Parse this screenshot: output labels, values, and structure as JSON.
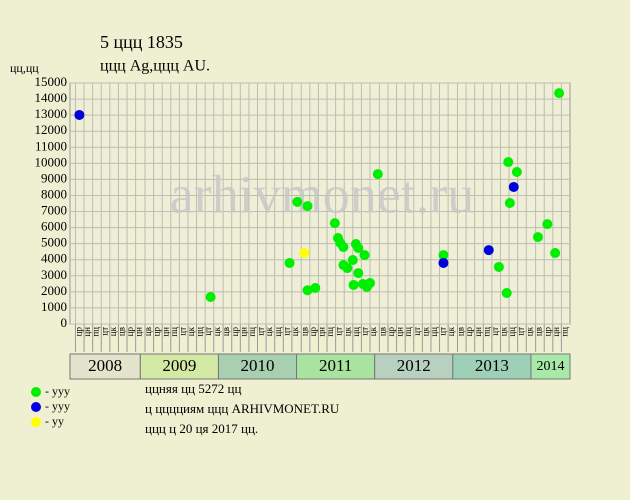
{
  "chart_data": {
    "type": "scatter",
    "title": "5 ццц 1835",
    "subtitle": "ццц Ag,ццц AU.",
    "ylabel": "цц,цц",
    "watermark": "arhivmonet.ru",
    "xlim": [
      2008.1,
      2014.5
    ],
    "ylim": [
      0,
      15000
    ],
    "yticks": [
      0,
      1000,
      2000,
      3000,
      4000,
      5000,
      6000,
      7000,
      8000,
      9000,
      10000,
      11000,
      12000,
      13000,
      14000,
      15000
    ],
    "grid": true,
    "xticks": [
      {
        "value": 2008.17,
        "label": "цр"
      },
      {
        "value": 2008.28,
        "label": "цн"
      },
      {
        "value": 2008.39,
        "label": "пц"
      },
      {
        "value": 2008.5,
        "label": "цт"
      },
      {
        "value": 2008.61,
        "label": "цк"
      },
      {
        "value": 2008.72,
        "label": "цв"
      },
      {
        "value": 2008.83,
        "label": "цр"
      },
      {
        "value": 2008.94,
        "label": "цн"
      },
      {
        "value": 2009.06,
        "label": "цв"
      },
      {
        "value": 2009.17,
        "label": "цр"
      },
      {
        "value": 2009.28,
        "label": "цн"
      },
      {
        "value": 2009.39,
        "label": "пц"
      },
      {
        "value": 2009.5,
        "label": "цт"
      },
      {
        "value": 2009.61,
        "label": "цк"
      },
      {
        "value": 2009.72,
        "label": "цц"
      },
      {
        "value": 2009.83,
        "label": "цт"
      },
      {
        "value": 2009.94,
        "label": "цк"
      },
      {
        "value": 2010.06,
        "label": "цв"
      },
      {
        "value": 2010.17,
        "label": "цр"
      },
      {
        "value": 2010.28,
        "label": "цн"
      },
      {
        "value": 2010.39,
        "label": "пц"
      },
      {
        "value": 2010.5,
        "label": "цт"
      },
      {
        "value": 2010.61,
        "label": "цк"
      },
      {
        "value": 2010.72,
        "label": "цц"
      },
      {
        "value": 2010.83,
        "label": "цт"
      },
      {
        "value": 2010.94,
        "label": "цк"
      },
      {
        "value": 2011.06,
        "label": "цв"
      },
      {
        "value": 2011.17,
        "label": "цр"
      },
      {
        "value": 2011.28,
        "label": "цн"
      },
      {
        "value": 2011.39,
        "label": "пц"
      },
      {
        "value": 2011.5,
        "label": "цт"
      },
      {
        "value": 2011.61,
        "label": "цк"
      },
      {
        "value": 2011.72,
        "label": "цц"
      },
      {
        "value": 2011.83,
        "label": "цт"
      },
      {
        "value": 2011.94,
        "label": "цк"
      },
      {
        "value": 2012.06,
        "label": "цв"
      },
      {
        "value": 2012.17,
        "label": "цр"
      },
      {
        "value": 2012.28,
        "label": "цн"
      },
      {
        "value": 2012.39,
        "label": "пц"
      },
      {
        "value": 2012.5,
        "label": "цт"
      },
      {
        "value": 2012.61,
        "label": "цк"
      },
      {
        "value": 2012.72,
        "label": "цц"
      },
      {
        "value": 2012.83,
        "label": "цт"
      },
      {
        "value": 2012.94,
        "label": "цк"
      },
      {
        "value": 2013.06,
        "label": "цв"
      },
      {
        "value": 2013.17,
        "label": "цр"
      },
      {
        "value": 2013.28,
        "label": "цн"
      },
      {
        "value": 2013.39,
        "label": "пц"
      },
      {
        "value": 2013.5,
        "label": "цт"
      },
      {
        "value": 2013.61,
        "label": "цк"
      },
      {
        "value": 2013.72,
        "label": "цц"
      },
      {
        "value": 2013.83,
        "label": "цт"
      },
      {
        "value": 2013.94,
        "label": "цк"
      },
      {
        "value": 2014.06,
        "label": "цв"
      },
      {
        "value": 2014.17,
        "label": "цр"
      },
      {
        "value": 2014.28,
        "label": "цн"
      },
      {
        "value": 2014.39,
        "label": "пц"
      }
    ],
    "year_bands": [
      2008,
      2009,
      2010,
      2011,
      2012,
      2013,
      2014
    ],
    "band_colors": [
      "#e4e4cc",
      "#d4eaa4",
      "#a8d0b0",
      "#a8e4a0",
      "#b8d0c0",
      "#9ed0b8",
      "#a8e8a8"
    ],
    "series": [
      {
        "name": "- ууу",
        "color": "#00ee00",
        "x": [
          2009.9,
          2010.91,
          2011.01,
          2011.14,
          2011.14,
          2011.24,
          2011.49,
          2011.53,
          2011.56,
          2011.6,
          2011.6,
          2011.65,
          2011.72,
          2011.73,
          2011.76,
          2011.79,
          2011.79,
          2011.85,
          2011.87,
          2011.9,
          2011.94,
          2012.04,
          2012.88,
          2013.59,
          2013.69,
          2013.71,
          2013.73,
          2013.82,
          2014.09,
          2014.21,
          2014.31,
          2014.36
        ],
        "values": [
          1680,
          3800,
          7600,
          7340,
          2100,
          2240,
          6280,
          5350,
          5040,
          4790,
          3670,
          3480,
          3980,
          2430,
          4980,
          4730,
          3170,
          2490,
          4290,
          2300,
          2550,
          9330,
          4290,
          3550,
          1930,
          10080,
          7530,
          9460,
          5410,
          6220,
          4420,
          14370
        ]
      },
      {
        "name": "- ууу",
        "color": "#0000dd",
        "x": [
          2008.22,
          2012.88,
          2013.46,
          2013.78
        ],
        "values": [
          13010,
          3800,
          4600,
          8530
        ]
      },
      {
        "name": "- уу",
        "color": "#ffff00",
        "x": [
          2011.1
        ],
        "values": [
          4420
        ]
      }
    ],
    "footer": [
      "ццняя цц 5272 цц",
      "ц цццциям ццц ARHIVMONET.RU",
      "ццц ц 20 ця 2017 цц."
    ]
  }
}
